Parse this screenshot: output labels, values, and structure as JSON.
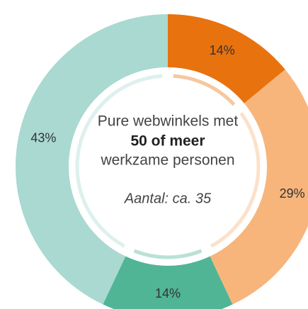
{
  "chart_data": {
    "type": "donut",
    "center_lines": [
      "Pure webwinkels met",
      "50 of meer",
      "werkzame personen"
    ],
    "note": "Aantal: ca. 35",
    "values": [
      14,
      29,
      14,
      43
    ],
    "value_labels": [
      "14%",
      "29%",
      "14%",
      "43%"
    ],
    "colors": [
      "#e8720e",
      "#f7b57b",
      "#4fb595",
      "#a9d9d1"
    ]
  }
}
